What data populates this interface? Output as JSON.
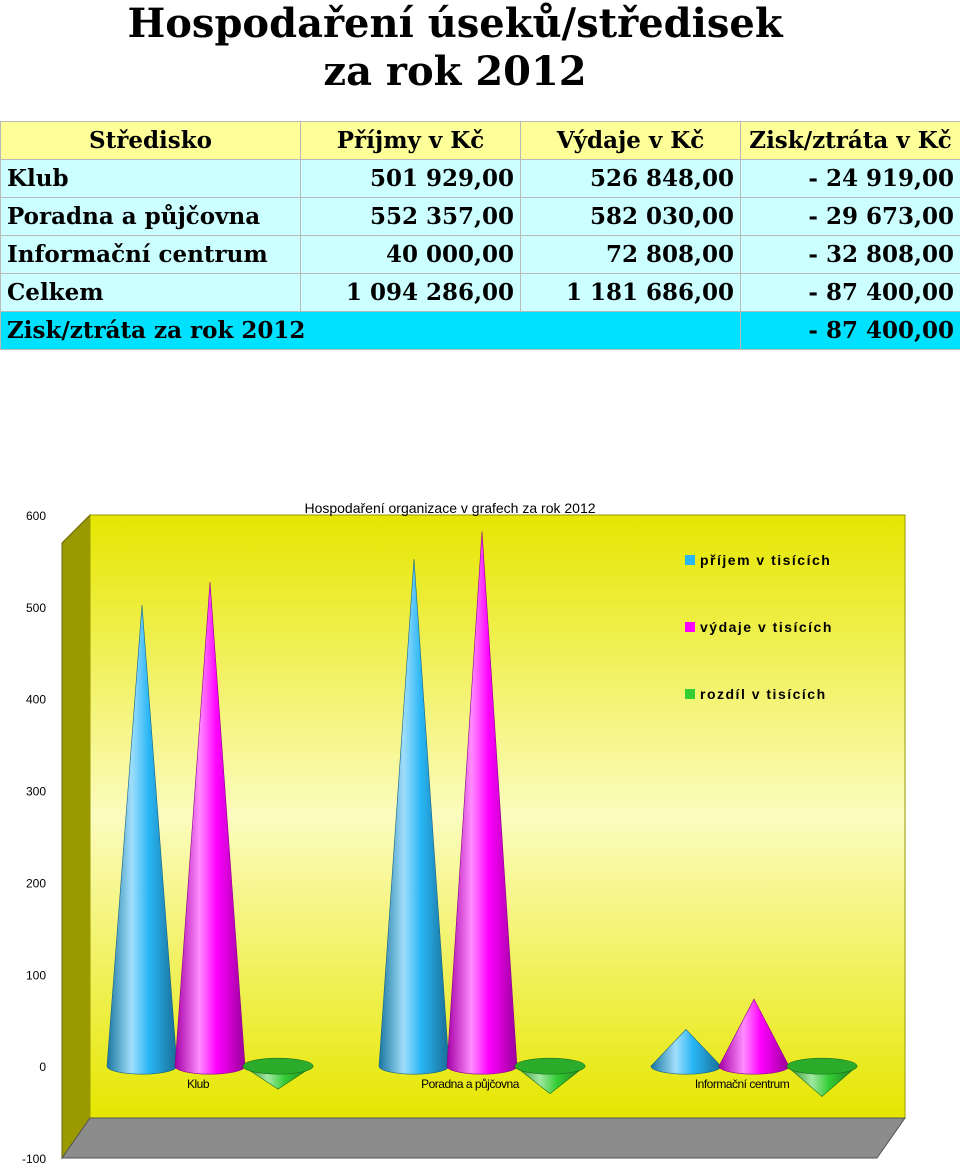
{
  "title": {
    "line1": "Hospodaření úseků/středisek",
    "line2": "za rok 2012"
  },
  "table": {
    "headers": [
      "Středisko",
      "Příjmy v Kč",
      "Výdaje v Kč",
      "Zisk/ztráta v Kč"
    ],
    "rows": [
      [
        "Klub",
        "501 929,00",
        "526 848,00",
        "- 24 919,00"
      ],
      [
        "Poradna a půjčovna",
        "552 357,00",
        "582 030,00",
        "- 29 673,00"
      ],
      [
        "Informační centrum",
        "40 000,00",
        "72 808,00",
        "- 32 808,00"
      ],
      [
        "Celkem",
        "1 094 286,00",
        "1 181 686,00",
        "- 87 400,00"
      ]
    ],
    "total_label": "Zisk/ztráta za rok 2012",
    "total_value": "- 87 400,00"
  },
  "colors": {
    "income": "#29b6f6",
    "expense": "#ff00ff",
    "difference": "#33cc33",
    "wall": "#f2f200",
    "side_wall": "#9a9a00",
    "floor": "#8c8c8c"
  },
  "chart_data": {
    "type": "bar",
    "style": "3d-cone",
    "title": "Hospodaření organizace v grafech za rok 2012",
    "categories": [
      "Klub",
      "Poradna a půjčovna",
      "Informační centrum"
    ],
    "series": [
      {
        "name": "příjem v tisících",
        "values": [
          502,
          552,
          40
        ]
      },
      {
        "name": "výdaje v tisících",
        "values": [
          527,
          582,
          73
        ]
      },
      {
        "name": "rozdíl v tisících",
        "values": [
          -25,
          -30,
          -33
        ]
      }
    ],
    "yticks": [
      -100,
      0,
      100,
      200,
      300,
      400,
      500,
      600
    ],
    "ylim": [
      -100,
      600
    ],
    "legend": "right",
    "grid": false
  }
}
